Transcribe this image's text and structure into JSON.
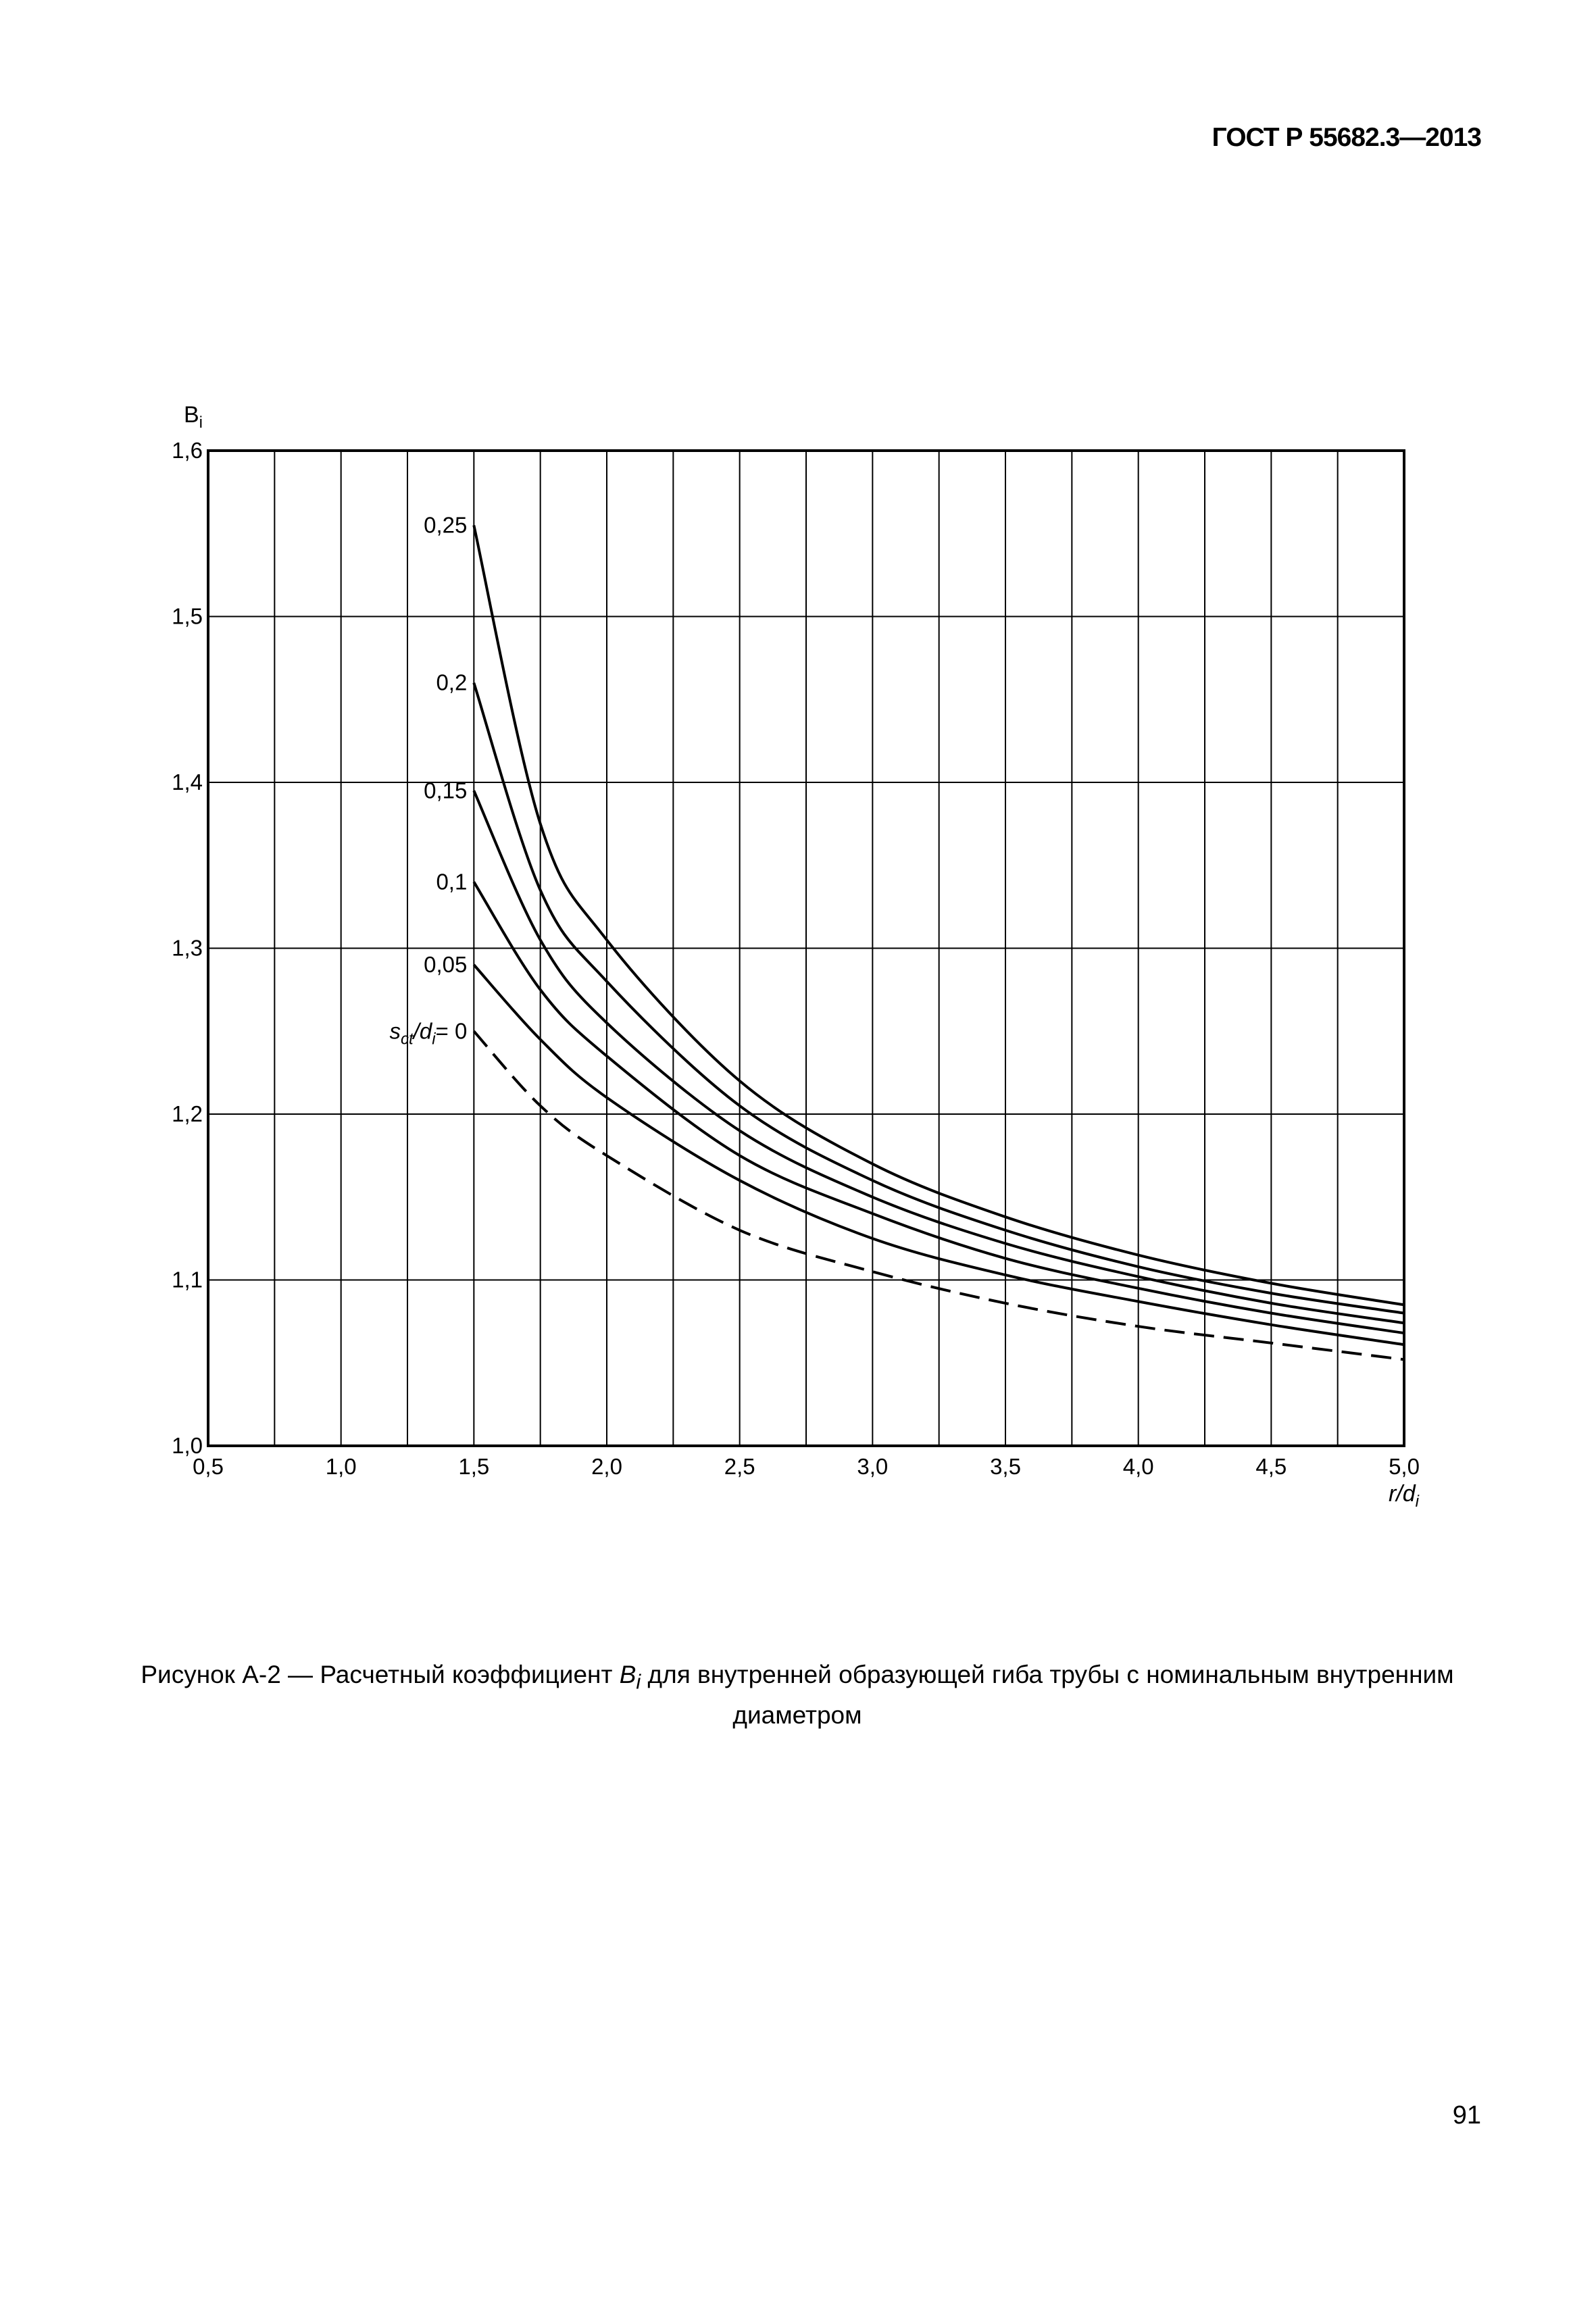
{
  "document": {
    "header": "ГОСТ Р 55682.3—2013",
    "page_number": "91",
    "caption": {
      "prefix": "Рисунок А-2 — Расчетный коэффициент ",
      "symbol": "B",
      "symbol_sub": "i",
      "suffix": " для внутренней образующей гиба трубы с номинальным внутренним диаметром"
    }
  },
  "chart_data": {
    "type": "line",
    "ylabel": {
      "main": "B",
      "sub": "i"
    },
    "xlabel": {
      "main": "r/d",
      "sub": "i"
    },
    "xlim": [
      0.5,
      5.0
    ],
    "ylim": [
      1.0,
      1.6
    ],
    "x_ticks": [
      "0,5",
      "1,0",
      "1,5",
      "2,0",
      "2,5",
      "3,0",
      "3,5",
      "4,0",
      "4,5",
      "5,0"
    ],
    "y_ticks": [
      "1,0",
      "1,1",
      "1,2",
      "1,3",
      "1,4",
      "1,5",
      "1,6"
    ],
    "grid": true,
    "x": [
      1.5,
      1.75,
      2.0,
      2.5,
      3.0,
      3.5,
      4.0,
      4.5,
      5.0
    ],
    "series": [
      {
        "label": "0,25",
        "style": "solid",
        "values": [
          1.555,
          1.375,
          1.305,
          1.22,
          1.17,
          1.138,
          1.115,
          1.098,
          1.085
        ]
      },
      {
        "label": "0,2",
        "style": "solid",
        "values": [
          1.46,
          1.335,
          1.28,
          1.205,
          1.16,
          1.13,
          1.108,
          1.092,
          1.08
        ]
      },
      {
        "label": "0,15",
        "style": "solid",
        "values": [
          1.395,
          1.305,
          1.255,
          1.19,
          1.15,
          1.122,
          1.102,
          1.086,
          1.074
        ]
      },
      {
        "label": "0,1",
        "style": "solid",
        "values": [
          1.34,
          1.275,
          1.235,
          1.175,
          1.14,
          1.113,
          1.095,
          1.08,
          1.068
        ]
      },
      {
        "label": "0,05",
        "style": "solid",
        "values": [
          1.29,
          1.245,
          1.21,
          1.16,
          1.125,
          1.103,
          1.087,
          1.073,
          1.061
        ]
      },
      {
        "label_main": "s",
        "label_sub1": "ct",
        "label_mid": "/d",
        "label_sub2": "i",
        "label_end": "= 0",
        "style": "dashed",
        "values": [
          1.25,
          1.205,
          1.175,
          1.13,
          1.105,
          1.086,
          1.072,
          1.062,
          1.052
        ]
      }
    ]
  }
}
